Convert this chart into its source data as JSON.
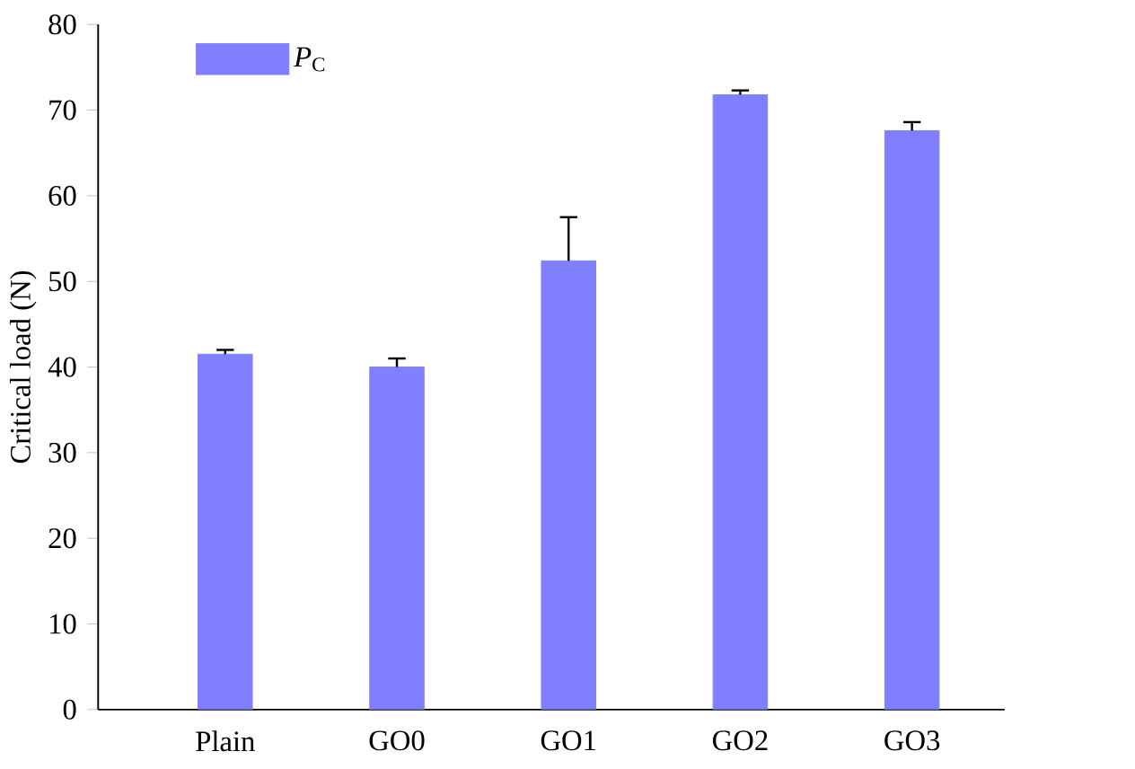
{
  "chart_data": {
    "type": "bar",
    "ylabel": "Critical load (N)",
    "categories": [
      "Plain",
      "GO0",
      "GO1",
      "GO2",
      "GO3"
    ],
    "series": [
      {
        "name": "*P*$_{C}$",
        "color": "#8080ff",
        "values": [
          41.5,
          40.0,
          52.4,
          71.8,
          67.6
        ],
        "errors": [
          0.5,
          1.0,
          5.1,
          0.5,
          1.0
        ]
      }
    ],
    "ylim": [
      0,
      80
    ],
    "yticks": [
      0,
      10,
      20,
      30,
      40,
      50,
      60,
      70,
      80
    ],
    "grid": false,
    "legend": "top left"
  }
}
